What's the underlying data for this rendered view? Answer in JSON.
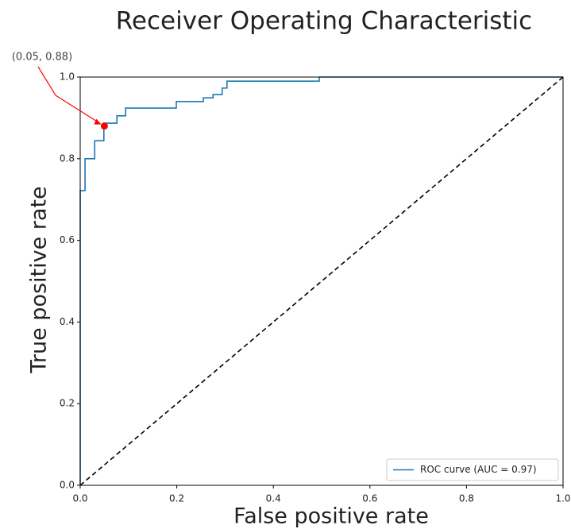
{
  "chart_data": {
    "type": "line",
    "title": "Receiver Operating Characteristic",
    "x_label": "False positive rate",
    "y_label": "True positive rate",
    "x": [
      0,
      0,
      0.01,
      0.01,
      0.03,
      0.03,
      0.049,
      0.049,
      0.076,
      0.076,
      0.094,
      0.094,
      0.199,
      0.199,
      0.255,
      0.255,
      0.275,
      0.275,
      0.294,
      0.294,
      0.304,
      0.304,
      0.495,
      0.495,
      1
    ],
    "series": [
      {
        "name": "ROC curve (AUC = 0.97)",
        "color": "#1f77b4",
        "values": [
          0,
          0.722,
          0.722,
          0.8,
          0.8,
          0.844,
          0.844,
          0.887,
          0.887,
          0.905,
          0.905,
          0.924,
          0.924,
          0.94,
          0.94,
          0.949,
          0.949,
          0.957,
          0.957,
          0.973,
          0.973,
          0.99,
          0.99,
          1,
          1
        ]
      }
    ],
    "reference_line": {
      "x": [
        0,
        1
      ],
      "values": [
        0,
        1
      ],
      "color": "#000000",
      "dashed": true
    },
    "annotation": {
      "text": "(0.05, 0.88)",
      "x": 0.05,
      "y": 0.88,
      "color": "#ff0000"
    },
    "xlim": [
      0,
      1
    ],
    "ylim": [
      0,
      1
    ],
    "xticks": [
      {
        "value": 0,
        "label": "0.0"
      },
      {
        "value": 0.2,
        "label": "0.2"
      },
      {
        "value": 0.4,
        "label": "0.4"
      },
      {
        "value": 0.6,
        "label": "0.6"
      },
      {
        "value": 0.8,
        "label": "0.8"
      },
      {
        "value": 1,
        "label": "1.0"
      }
    ],
    "yticks": [
      {
        "value": 0,
        "label": "0.0"
      },
      {
        "value": 0.2,
        "label": "0.2"
      },
      {
        "value": 0.4,
        "label": "0.4"
      },
      {
        "value": 0.6,
        "label": "0.6"
      },
      {
        "value": 0.8,
        "label": "0.8"
      },
      {
        "value": 1,
        "label": "1.0"
      }
    ],
    "grid": false,
    "legend": "lower right"
  }
}
